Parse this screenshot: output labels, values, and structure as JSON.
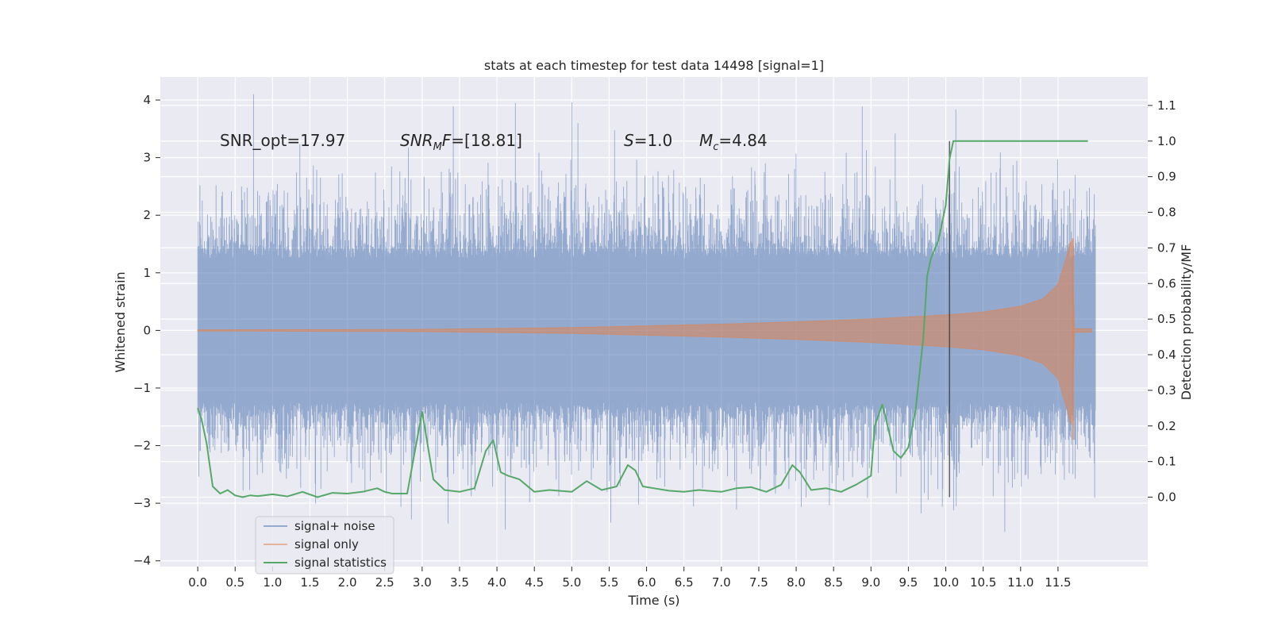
{
  "chart_data": {
    "type": "line",
    "title": "stats at each timestep for test data 14498 [signal=1]",
    "xlabel": "Time (s)",
    "ylabel": "Whitened strain",
    "ylabel_right": "Detection probability/MF",
    "xlim": [
      -0.5,
      12.7
    ],
    "ylim": [
      -4.1,
      4.4
    ],
    "ylim_right": [
      -0.195,
      1.18
    ],
    "x_ticks": [
      "0.0",
      "0.5",
      "1.0",
      "1.5",
      "2.0",
      "2.5",
      "3.0",
      "3.5",
      "4.0",
      "4.5",
      "5.0",
      "5.5",
      "6.0",
      "6.5",
      "7.0",
      "7.5",
      "8.0",
      "8.5",
      "9.0",
      "9.5",
      "10.0",
      "10.5",
      "11.0",
      "11.5"
    ],
    "y_ticks_left": [
      "4",
      "3",
      "2",
      "1",
      "0",
      "−1",
      "−2",
      "−3",
      "−4"
    ],
    "y_ticks_right": [
      "1.1",
      "1.0",
      "0.9",
      "0.8",
      "0.7",
      "0.6",
      "0.5",
      "0.4",
      "0.3",
      "0.2",
      "0.1",
      "0.0"
    ],
    "annotations": {
      "snr_opt": "SNR_opt=17.97",
      "snr_mf_sym": "SNR",
      "snr_mf_sub": "M",
      "snr_mf_sym2": "F",
      "snr_mf_val": "=[18.81]",
      "s_sym": "S",
      "s_val": "=1.0",
      "mc_sym": "M",
      "mc_sub": "c",
      "mc_val": "=4.84"
    },
    "event_time": 10.05,
    "series": [
      {
        "name": "signal+ noise",
        "color": "#4c72b0",
        "description": "whitened strain, noise amplitude ~1.2 std, t from 0 to 12"
      },
      {
        "name": "signal only",
        "color": "#dd8452",
        "envelope_t": [
          0.0,
          3.0,
          5.0,
          6.0,
          7.0,
          8.0,
          9.0,
          10.0,
          10.5,
          11.0,
          11.3,
          11.5,
          11.62,
          11.68,
          11.72
        ],
        "envelope_a": [
          0.01,
          0.02,
          0.05,
          0.08,
          0.11,
          0.15,
          0.2,
          0.27,
          0.32,
          0.42,
          0.55,
          0.8,
          1.3,
          1.6,
          0.05
        ]
      },
      {
        "name": "signal statistics",
        "color": "#55a868",
        "t": [
          0.0,
          0.05,
          0.12,
          0.2,
          0.3,
          0.4,
          0.5,
          0.6,
          0.7,
          0.8,
          1.0,
          1.2,
          1.4,
          1.6,
          1.8,
          2.0,
          2.2,
          2.4,
          2.5,
          2.6,
          2.8,
          3.0,
          3.15,
          3.3,
          3.5,
          3.7,
          3.85,
          3.95,
          4.05,
          4.15,
          4.3,
          4.5,
          4.7,
          5.0,
          5.2,
          5.4,
          5.6,
          5.75,
          5.85,
          5.95,
          6.1,
          6.3,
          6.5,
          6.7,
          7.0,
          7.2,
          7.4,
          7.6,
          7.8,
          7.95,
          8.05,
          8.2,
          8.4,
          8.6,
          8.8,
          9.0,
          9.05,
          9.15,
          9.2,
          9.3,
          9.4,
          9.5,
          9.6,
          9.7,
          9.75,
          9.8,
          9.9,
          10.0,
          10.05,
          10.1,
          10.2,
          10.3,
          10.5,
          11.0,
          11.5,
          11.7,
          11.9
        ],
        "p": [
          0.25,
          0.22,
          0.15,
          0.03,
          0.01,
          0.02,
          0.005,
          0.0,
          0.005,
          0.003,
          0.008,
          0.002,
          0.015,
          0.0,
          0.012,
          0.01,
          0.015,
          0.025,
          0.015,
          0.01,
          0.01,
          0.24,
          0.05,
          0.02,
          0.015,
          0.025,
          0.13,
          0.16,
          0.07,
          0.06,
          0.05,
          0.015,
          0.02,
          0.015,
          0.045,
          0.02,
          0.03,
          0.09,
          0.075,
          0.03,
          0.025,
          0.018,
          0.015,
          0.02,
          0.015,
          0.025,
          0.028,
          0.015,
          0.035,
          0.09,
          0.07,
          0.02,
          0.025,
          0.015,
          0.035,
          0.06,
          0.2,
          0.26,
          0.22,
          0.13,
          0.11,
          0.14,
          0.25,
          0.45,
          0.62,
          0.67,
          0.72,
          0.82,
          0.95,
          1.0,
          1.0,
          1.0,
          1.0,
          1.0,
          1.0,
          1.0,
          1.0
        ]
      }
    ],
    "legend": [
      "signal+ noise",
      "signal only",
      "signal statistics"
    ],
    "legend_position": "lower-left"
  }
}
